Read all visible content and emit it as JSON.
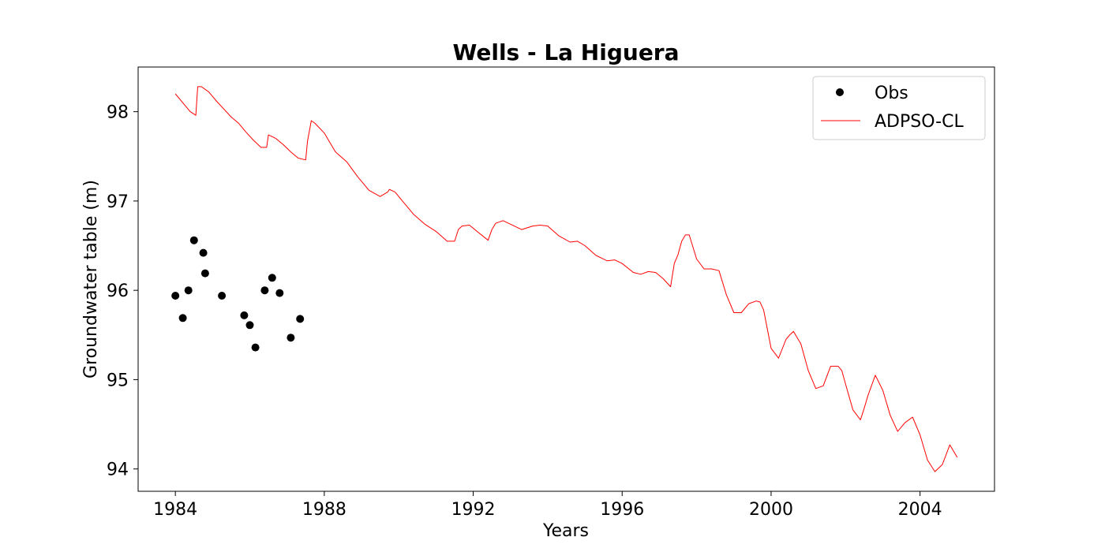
{
  "chart_data": {
    "type": "line",
    "title": "Wells - La Higuera",
    "xlabel": "Years",
    "ylabel": "Groundwater table (m)",
    "xlim": [
      1983.0,
      2006.0
    ],
    "ylim": [
      93.75,
      98.5
    ],
    "x_ticks": [
      1984,
      1988,
      1992,
      1996,
      2000,
      2004
    ],
    "y_ticks": [
      94,
      95,
      96,
      97,
      98
    ],
    "grid": false,
    "legend_position": "top-right",
    "series": [
      {
        "name": "Obs",
        "kind": "scatter",
        "color": "#000000",
        "x": [
          1984.0,
          1984.2,
          1984.35,
          1984.5,
          1984.75,
          1984.8,
          1985.25,
          1985.85,
          1986.0,
          1986.15,
          1986.4,
          1986.6,
          1986.8,
          1987.1,
          1987.35
        ],
        "y": [
          95.94,
          95.69,
          96.0,
          96.56,
          96.42,
          96.19,
          95.94,
          95.72,
          95.61,
          95.36,
          96.0,
          96.14,
          95.97,
          95.47,
          95.68
        ]
      },
      {
        "name": "ADPSO-CL",
        "kind": "line",
        "color": "#ff0000",
        "x": [
          1984.0,
          1984.2,
          1984.4,
          1984.55,
          1984.6,
          1984.7,
          1984.9,
          1985.1,
          1985.3,
          1985.5,
          1985.7,
          1985.9,
          1986.1,
          1986.3,
          1986.45,
          1986.5,
          1986.7,
          1986.9,
          1987.1,
          1987.3,
          1987.5,
          1987.55,
          1987.65,
          1987.75,
          1988.0,
          1988.3,
          1988.6,
          1988.9,
          1989.2,
          1989.5,
          1989.7,
          1989.75,
          1989.9,
          1990.1,
          1990.4,
          1990.7,
          1991.0,
          1991.3,
          1991.5,
          1991.6,
          1991.7,
          1991.9,
          1992.1,
          1992.4,
          1992.5,
          1992.6,
          1992.8,
          1993.0,
          1993.3,
          1993.6,
          1993.8,
          1994.0,
          1994.3,
          1994.6,
          1994.8,
          1995.0,
          1995.3,
          1995.6,
          1995.8,
          1996.0,
          1996.3,
          1996.5,
          1996.7,
          1996.9,
          1997.1,
          1997.3,
          1997.4,
          1997.5,
          1997.6,
          1997.7,
          1997.8,
          1998.0,
          1998.2,
          1998.4,
          1998.6,
          1998.8,
          1999.0,
          1999.2,
          1999.4,
          1999.6,
          1999.7,
          1999.8,
          2000.0,
          2000.2,
          2000.4,
          2000.5,
          2000.6,
          2000.8,
          2001.0,
          2001.2,
          2001.4,
          2001.6,
          2001.8,
          2001.9,
          2002.0,
          2002.2,
          2002.4,
          2002.5,
          2002.6,
          2002.8,
          2003.0,
          2003.2,
          2003.4,
          2003.6,
          2003.8,
          2004.0,
          2004.2,
          2004.4,
          2004.6,
          2004.8,
          2005.0
        ],
        "y": [
          98.2,
          98.1,
          98.0,
          97.96,
          98.28,
          98.28,
          98.22,
          98.12,
          98.03,
          97.94,
          97.87,
          97.77,
          97.68,
          97.6,
          97.6,
          97.74,
          97.7,
          97.63,
          97.55,
          97.48,
          97.46,
          97.67,
          97.9,
          97.87,
          97.76,
          97.55,
          97.44,
          97.27,
          97.12,
          97.05,
          97.1,
          97.13,
          97.1,
          97.0,
          96.85,
          96.74,
          96.66,
          96.55,
          96.55,
          96.68,
          96.72,
          96.73,
          96.66,
          96.56,
          96.68,
          96.75,
          96.78,
          96.74,
          96.68,
          96.72,
          96.73,
          96.72,
          96.61,
          96.54,
          96.55,
          96.5,
          96.39,
          96.33,
          96.34,
          96.3,
          96.2,
          96.18,
          96.21,
          96.2,
          96.13,
          96.04,
          96.3,
          96.4,
          96.55,
          96.62,
          96.62,
          96.35,
          96.24,
          96.24,
          96.22,
          95.95,
          95.75,
          95.75,
          95.85,
          95.88,
          95.87,
          95.78,
          95.35,
          95.24,
          95.45,
          95.5,
          95.54,
          95.4,
          95.1,
          94.9,
          94.93,
          95.15,
          95.15,
          95.1,
          94.95,
          94.66,
          94.55,
          94.68,
          94.82,
          95.05,
          94.88,
          94.6,
          94.42,
          94.52,
          94.58,
          94.38,
          94.1,
          93.97,
          94.05,
          94.27,
          94.13
        ]
      }
    ]
  }
}
